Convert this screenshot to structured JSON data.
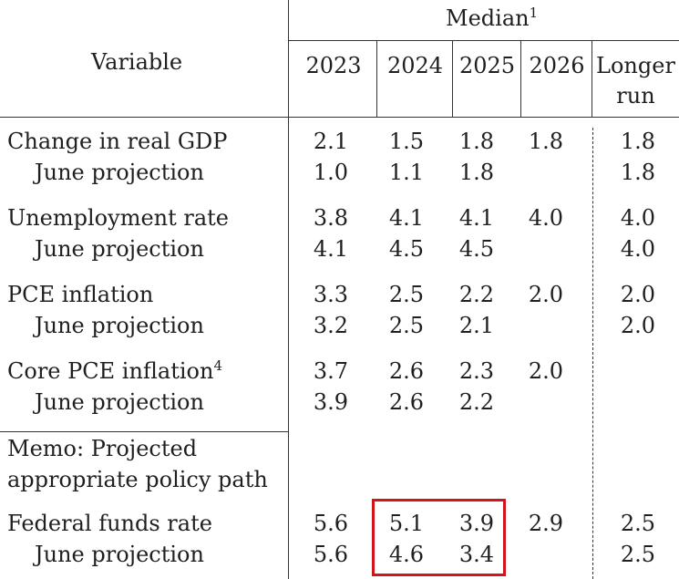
{
  "header": {
    "variable_label": "Variable",
    "median_label": "Median",
    "median_note": "1",
    "years": [
      "2023",
      "2024",
      "2025",
      "2026"
    ],
    "longer_run_line1": "Longer",
    "longer_run_line2": "run"
  },
  "rows": [
    {
      "label": "Change in real GDP",
      "note": "",
      "values": [
        "2.1",
        "1.5",
        "1.8",
        "1.8",
        "1.8"
      ]
    },
    {
      "label": "June projection",
      "note": "",
      "values": [
        "1.0",
        "1.1",
        "1.8",
        "",
        "1.8"
      ]
    },
    {
      "label": "Unemployment rate",
      "note": "",
      "values": [
        "3.8",
        "4.1",
        "4.1",
        "4.0",
        "4.0"
      ]
    },
    {
      "label": "June projection",
      "note": "",
      "values": [
        "4.1",
        "4.5",
        "4.5",
        "",
        "4.0"
      ]
    },
    {
      "label": "PCE inflation",
      "note": "",
      "values": [
        "3.3",
        "2.5",
        "2.2",
        "2.0",
        "2.0"
      ]
    },
    {
      "label": "June projection",
      "note": "",
      "values": [
        "3.2",
        "2.5",
        "2.1",
        "",
        "2.0"
      ]
    },
    {
      "label": "Core PCE inflation",
      "note": "4",
      "values": [
        "3.7",
        "2.6",
        "2.3",
        "2.0",
        ""
      ]
    },
    {
      "label": "June projection",
      "note": "",
      "values": [
        "3.9",
        "2.6",
        "2.2",
        "",
        ""
      ]
    }
  ],
  "memo": {
    "line1": "Memo: Projected",
    "line2": "appropriate policy path"
  },
  "policy_rows": [
    {
      "label": "Federal funds rate",
      "values": [
        "5.6",
        "5.1",
        "3.9",
        "2.9",
        "2.5"
      ]
    },
    {
      "label": "June projection",
      "values": [
        "5.6",
        "4.6",
        "3.4",
        "",
        "2.5"
      ]
    }
  ],
  "highlight": {
    "color": "#d4141b",
    "columns": [
      "2024",
      "2025"
    ],
    "rows": [
      "Federal funds rate",
      "June projection"
    ]
  }
}
